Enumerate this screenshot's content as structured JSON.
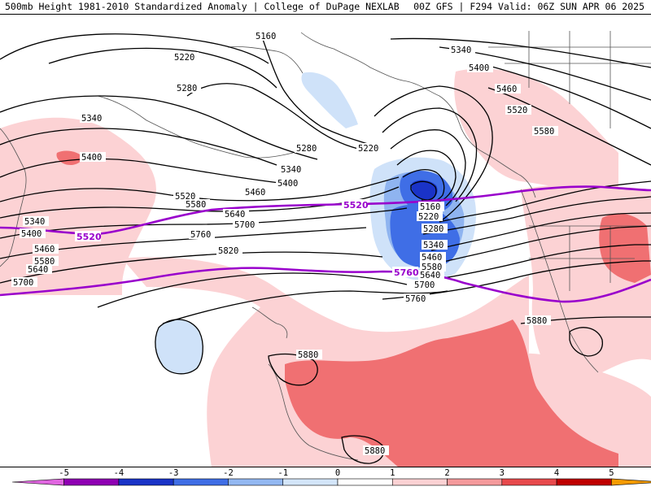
{
  "header": {
    "title": "500mb Height 1981-2010 Standardized Anomaly | College of DuPage NEXLAB",
    "run_info": "00Z GFS | F294 Valid: 06Z SUN APR 06 2025"
  },
  "map": {
    "contour_labels": [
      "5160",
      "5220",
      "5280",
      "5340",
      "5400",
      "5460",
      "5520",
      "5580",
      "5640",
      "5700",
      "5760",
      "5820",
      "5880"
    ],
    "highlight_contours": [
      "5520",
      "5760"
    ],
    "highlight_color": "#9900cc"
  },
  "colorbar": {
    "ticks": [
      "-5",
      "-4",
      "-3",
      "-2",
      "-1",
      "0",
      "1",
      "2",
      "3",
      "4",
      "5"
    ],
    "colors": [
      "#e066e0",
      "#8f00b3",
      "#1a33c7",
      "#3f6ee6",
      "#93b8f2",
      "#d4e6fa",
      "#ffffff",
      "#fcd2d4",
      "#f59a9c",
      "#e84a4d",
      "#bf0000",
      "#f59b00"
    ]
  }
}
